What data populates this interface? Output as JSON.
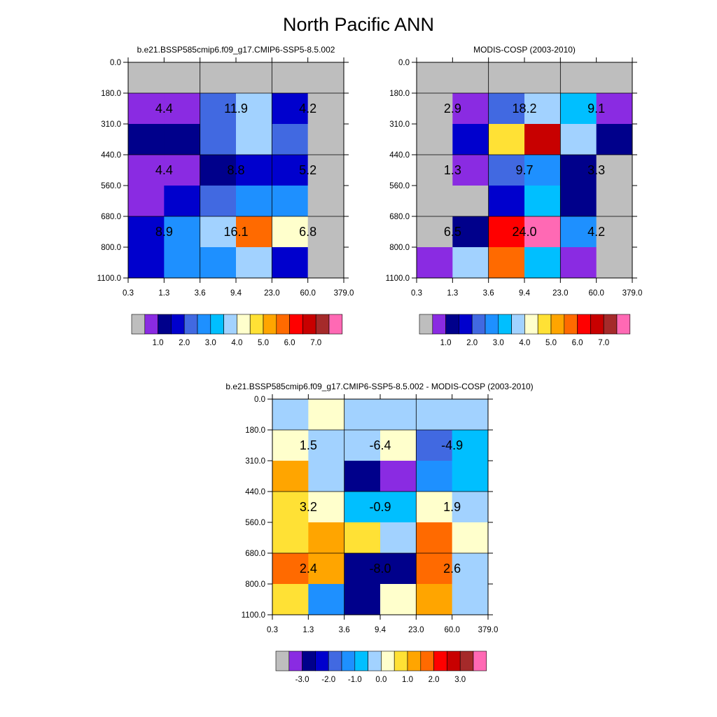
{
  "title": "North Pacific ANN",
  "chart_data": [
    {
      "id": "p1",
      "type": "heatmap",
      "title": "b.e21.BSSP585cmip6.f09_g17.CMIP6-SSP5-8.5.002",
      "x_ticks": [
        "0.3",
        "1.3",
        "3.6",
        "9.4",
        "23.0",
        "60.0",
        "379.0"
      ],
      "y_ticks": [
        "0.0",
        "180.0",
        "310.0",
        "440.0",
        "560.0",
        "680.0",
        "800.0",
        "1100.0"
      ],
      "xlabel": "",
      "ylabel": "",
      "colormap": [
        "#bebebe",
        "#8a2be2",
        "#00008b",
        "#0000cd",
        "#4169e1",
        "#1e90ff",
        "#00bfff",
        "#a2d2ff",
        "#ffffcc",
        "#ffe135",
        "#ffa500",
        "#ff6a00",
        "#ff0000",
        "#c80000",
        "#a52a2a",
        "#ff69b4"
      ],
      "cell_color_index": [
        [
          0,
          0,
          0,
          0,
          0,
          0
        ],
        [
          1,
          1,
          4,
          7,
          3,
          0
        ],
        [
          2,
          2,
          4,
          7,
          4,
          0
        ],
        [
          1,
          1,
          2,
          3,
          3,
          0
        ],
        [
          1,
          3,
          4,
          5,
          5,
          0
        ],
        [
          3,
          5,
          7,
          11,
          8,
          0
        ],
        [
          3,
          5,
          5,
          7,
          3,
          0
        ]
      ],
      "totals": [
        {
          "col": 0,
          "row": 0,
          "value": "4.4"
        },
        {
          "col": 1,
          "row": 0,
          "value": "11.9"
        },
        {
          "col": 2,
          "row": 0,
          "value": "4.2"
        },
        {
          "col": 0,
          "row": 1,
          "value": "4.4"
        },
        {
          "col": 1,
          "row": 1,
          "value": "8.8"
        },
        {
          "col": 2,
          "row": 1,
          "value": "5.2"
        },
        {
          "col": 0,
          "row": 2,
          "value": "8.9"
        },
        {
          "col": 1,
          "row": 2,
          "value": "16.1"
        },
        {
          "col": 2,
          "row": 2,
          "value": "6.8"
        }
      ],
      "colorbar_labels": [
        "1.0",
        "2.0",
        "3.0",
        "4.0",
        "5.0",
        "6.0",
        "7.0"
      ]
    },
    {
      "id": "p2",
      "type": "heatmap",
      "title": "MODIS-COSP (2003-2010)",
      "x_ticks": [
        "0.3",
        "1.3",
        "3.6",
        "9.4",
        "23.0",
        "60.0",
        "379.0"
      ],
      "y_ticks": [
        "0.0",
        "180.0",
        "310.0",
        "440.0",
        "560.0",
        "680.0",
        "800.0",
        "1100.0"
      ],
      "xlabel": "",
      "ylabel": "",
      "colormap": [
        "#bebebe",
        "#8a2be2",
        "#00008b",
        "#0000cd",
        "#4169e1",
        "#1e90ff",
        "#00bfff",
        "#a2d2ff",
        "#ffffcc",
        "#ffe135",
        "#ffa500",
        "#ff6a00",
        "#ff0000",
        "#c80000",
        "#a52a2a",
        "#ff69b4"
      ],
      "cell_color_index": [
        [
          0,
          0,
          0,
          0,
          0,
          0
        ],
        [
          0,
          1,
          4,
          7,
          6,
          1
        ],
        [
          0,
          3,
          9,
          13,
          7,
          2
        ],
        [
          0,
          1,
          4,
          5,
          2,
          0
        ],
        [
          0,
          0,
          3,
          6,
          2,
          0
        ],
        [
          0,
          2,
          12,
          15,
          5,
          0
        ],
        [
          1,
          7,
          11,
          6,
          1,
          0
        ]
      ],
      "totals": [
        {
          "col": 0,
          "row": 0,
          "value": "2.9"
        },
        {
          "col": 1,
          "row": 0,
          "value": "18.2"
        },
        {
          "col": 2,
          "row": 0,
          "value": "9.1"
        },
        {
          "col": 0,
          "row": 1,
          "value": "1.3"
        },
        {
          "col": 1,
          "row": 1,
          "value": "9.7"
        },
        {
          "col": 2,
          "row": 1,
          "value": "3.3"
        },
        {
          "col": 0,
          "row": 2,
          "value": "6.5"
        },
        {
          "col": 1,
          "row": 2,
          "value": "24.0"
        },
        {
          "col": 2,
          "row": 2,
          "value": "4.2"
        }
      ],
      "colorbar_labels": [
        "1.0",
        "2.0",
        "3.0",
        "4.0",
        "5.0",
        "6.0",
        "7.0"
      ]
    },
    {
      "id": "p3",
      "type": "heatmap",
      "title": "b.e21.BSSP585cmip6.f09_g17.CMIP6-SSP5-8.5.002 - MODIS-COSP (2003-2010)",
      "x_ticks": [
        "0.3",
        "1.3",
        "3.6",
        "9.4",
        "23.0",
        "60.0",
        "379.0"
      ],
      "y_ticks": [
        "0.0",
        "180.0",
        "310.0",
        "440.0",
        "560.0",
        "680.0",
        "800.0",
        "1100.0"
      ],
      "xlabel": "",
      "ylabel": "",
      "colormap": [
        "#bebebe",
        "#8a2be2",
        "#00008b",
        "#0000cd",
        "#4169e1",
        "#1e90ff",
        "#00bfff",
        "#a2d2ff",
        "#ffffcc",
        "#ffe135",
        "#ffa500",
        "#ff6a00",
        "#ff0000",
        "#c80000",
        "#a52a2a",
        "#ff69b4"
      ],
      "cell_color_index": [
        [
          7,
          8,
          7,
          7,
          7,
          7
        ],
        [
          8,
          7,
          7,
          8,
          4,
          6
        ],
        [
          10,
          7,
          2,
          1,
          5,
          6
        ],
        [
          9,
          8,
          6,
          6,
          8,
          7
        ],
        [
          9,
          10,
          9,
          7,
          11,
          8
        ],
        [
          11,
          10,
          2,
          2,
          11,
          7
        ],
        [
          9,
          5,
          2,
          8,
          10,
          7
        ]
      ],
      "totals": [
        {
          "col": 0,
          "row": 0,
          "value": "1.5"
        },
        {
          "col": 1,
          "row": 0,
          "value": "-6.4"
        },
        {
          "col": 2,
          "row": 0,
          "value": "-4.9"
        },
        {
          "col": 0,
          "row": 1,
          "value": "3.2"
        },
        {
          "col": 1,
          "row": 1,
          "value": "-0.9"
        },
        {
          "col": 2,
          "row": 1,
          "value": "1.9"
        },
        {
          "col": 0,
          "row": 2,
          "value": "2.4"
        },
        {
          "col": 1,
          "row": 2,
          "value": "-8.0"
        },
        {
          "col": 2,
          "row": 2,
          "value": "2.6"
        }
      ],
      "colorbar_labels": [
        "-3.0",
        "-2.0",
        "-1.0",
        "0.0",
        "1.0",
        "2.0",
        "3.0"
      ]
    }
  ]
}
